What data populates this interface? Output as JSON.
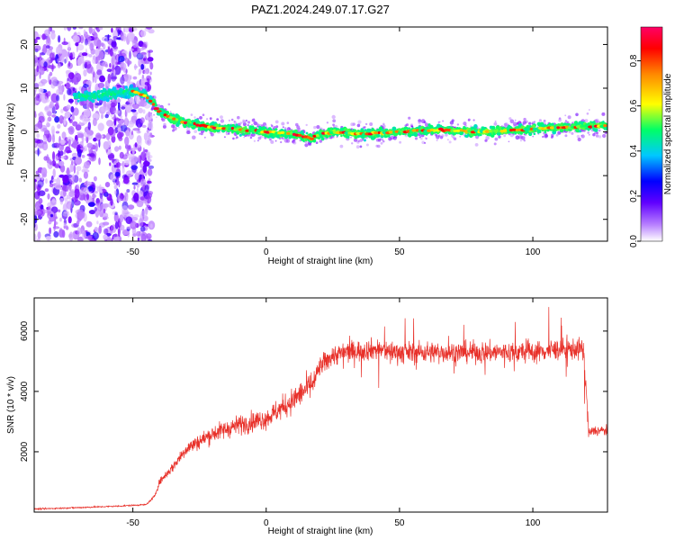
{
  "figure": {
    "title": "PAZ1.2024.249.07.17.G27"
  },
  "chart_data": [
    {
      "type": "heatmap",
      "xlabel": "Height of straight line (km)",
      "ylabel": "Frequency (Hz)",
      "xlim": [
        -87,
        128
      ],
      "ylim": [
        -25,
        24
      ],
      "x_ticks": [
        -50,
        0,
        50,
        100
      ],
      "y_ticks": [
        -20,
        -10,
        0,
        10,
        20
      ],
      "colorbar": {
        "label": "Normalized spectral amplitude",
        "range": [
          0,
          0.95
        ],
        "ticks": [
          0.0,
          0.2,
          0.4,
          0.6,
          0.8
        ],
        "tick_labels": [
          "0.0",
          "0.2",
          "0.4",
          "0.6",
          "0.8"
        ],
        "colormap": [
          "#ffffff",
          "#7a00ff",
          "#0000ff",
          "#00c8ff",
          "#00ff66",
          "#ffff00",
          "#ff8800",
          "#ff0000",
          "#ff0066"
        ]
      },
      "ridge": {
        "height_km": [
          -70,
          -60,
          -55,
          -50,
          -46,
          -44,
          -42,
          -40,
          -35,
          -30,
          -25,
          -20,
          -10,
          0,
          10,
          17,
          20,
          25,
          35,
          50,
          65,
          80,
          95,
          110,
          128
        ],
        "frequency_hz": [
          8,
          8.5,
          9,
          9.2,
          8.5,
          7.5,
          6,
          4.5,
          3,
          2,
          1.5,
          1,
          0.5,
          0,
          -0.5,
          -1.5,
          -0.5,
          0,
          -0.5,
          0,
          0.5,
          0,
          0.5,
          1,
          1.5
        ]
      },
      "noise_region_km": [
        -87,
        -43
      ],
      "grid": false
    },
    {
      "type": "line",
      "xlabel": "Height of straight line (km)",
      "ylabel": "SNR (10 * v/v)",
      "xlim": [
        -87,
        128
      ],
      "ylim": [
        0,
        7100
      ],
      "x_ticks": [
        -50,
        0,
        50,
        100
      ],
      "y_ticks": [
        2000,
        4000,
        6000
      ],
      "series": [
        {
          "color": "#e8312a",
          "x": [
            -87,
            -70,
            -55,
            -45,
            -42,
            -40,
            -35,
            -30,
            -20,
            -10,
            0,
            10,
            18,
            20,
            25,
            30,
            40,
            50,
            60,
            70,
            80,
            90,
            100,
            110,
            119,
            121,
            123,
            128
          ],
          "values": [
            100,
            150,
            200,
            250,
            500,
            1000,
            1500,
            2100,
            2600,
            2900,
            3100,
            3700,
            4300,
            4800,
            5200,
            5300,
            5400,
            5300,
            5300,
            5300,
            5300,
            5300,
            5300,
            5400,
            5400,
            2600,
            2700,
            2700
          ]
        }
      ],
      "grid": false
    }
  ]
}
